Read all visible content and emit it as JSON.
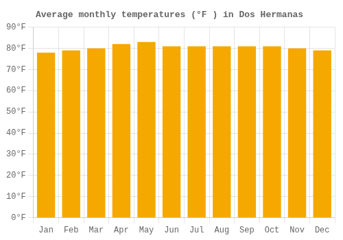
{
  "chart_data": {
    "type": "bar",
    "title": "Average monthly temperatures (°F ) in Dos Hermanas",
    "categories": [
      "Jan",
      "Feb",
      "Mar",
      "Apr",
      "May",
      "Jun",
      "Jul",
      "Aug",
      "Sep",
      "Oct",
      "Nov",
      "Dec"
    ],
    "values": [
      78,
      79,
      80,
      82,
      83,
      81,
      81,
      81,
      81,
      81,
      80,
      79
    ],
    "color": "#F5A800",
    "ylim": [
      0,
      90
    ],
    "yticks": [
      {
        "value": 0,
        "label": "0°F"
      },
      {
        "value": 10,
        "label": "10°F"
      },
      {
        "value": 20,
        "label": "20°F"
      },
      {
        "value": 30,
        "label": "30°F"
      },
      {
        "value": 40,
        "label": "40°F"
      },
      {
        "value": 50,
        "label": "50°F"
      },
      {
        "value": 60,
        "label": "60°F"
      },
      {
        "value": 70,
        "label": "70°F"
      },
      {
        "value": 80,
        "label": "80°F"
      },
      {
        "value": 90,
        "label": "90°F"
      }
    ],
    "grid": true
  }
}
